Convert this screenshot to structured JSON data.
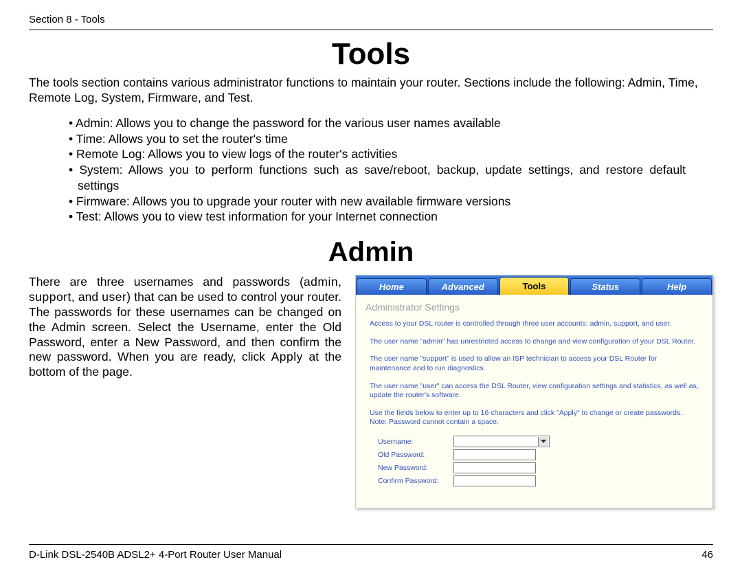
{
  "header": {
    "section_label": "Section 8 - Tools"
  },
  "title": "Tools",
  "intro": "The tools section contains various administrator functions to maintain your router. Sections include the following: Admin, Time, Remote Log, System, Firmware, and Test.",
  "bullets": [
    "Admin:  Allows you to change the password for the various user names available",
    "Time:  Allows you to set the router's time",
    "Remote Log:  Allows you to view logs of the router's activities",
    "System:  Allows you to perform functions such as save/reboot, backup, update settings, and restore default settings",
    "Firmware:  Allows you to upgrade your router with new available firmware versions",
    "Test:  Allows you to view test information for your Internet connection"
  ],
  "subtitle": "Admin",
  "admin_para": {
    "pre": "There are three usernames and passwords (",
    "u1": "admin",
    "sep1": ", ",
    "u2": "support",
    "sep2": ", and ",
    "u3": "user",
    "post": ") that can be used to control your router. The passwords for these usernames can be changed on the Admin screen.  Select the Username, enter the Old Password, enter a New Password, and then confirm the new password. When you are ready, click ",
    "apply": "Apply",
    "tail": " at the bottom of the page."
  },
  "screenshot": {
    "tabs": [
      "Home",
      "Advanced",
      "Tools",
      "Status",
      "Help"
    ],
    "active_tab_index": 2,
    "panel_title": "Administrator Settings",
    "paragraphs": [
      "Access to your DSL router is controlled through three user accounts: admin, support, and user.",
      "The user name \"admin\" has unrestricted access to change and view configuration of your DSL Router.",
      "The user name \"support\" is used to allow an ISP technician to access your DSL Router for maintenance and to run diagnostics.",
      "The user name \"user\" can access the DSL Router, view configuration settings and statistics, as well as, update the router's software.",
      "Use the fields below to enter up to 16 characters and click \"Apply\" to change or create passwords. Note: Password cannot contain a space."
    ],
    "fields": {
      "username": "Username:",
      "old_password": "Old Password:",
      "new_password": "New Password:",
      "confirm_password": "Confirm Password:"
    },
    "colors": {
      "tab_bar_bg": "#2a5fc8",
      "tab_active_bg": "#f8c82a",
      "panel_bg": "#fefff2",
      "text_color": "#3250c0"
    }
  },
  "footer": {
    "manual": "D-Link DSL-2540B ADSL2+ 4-Port Router User Manual",
    "page": "46"
  }
}
